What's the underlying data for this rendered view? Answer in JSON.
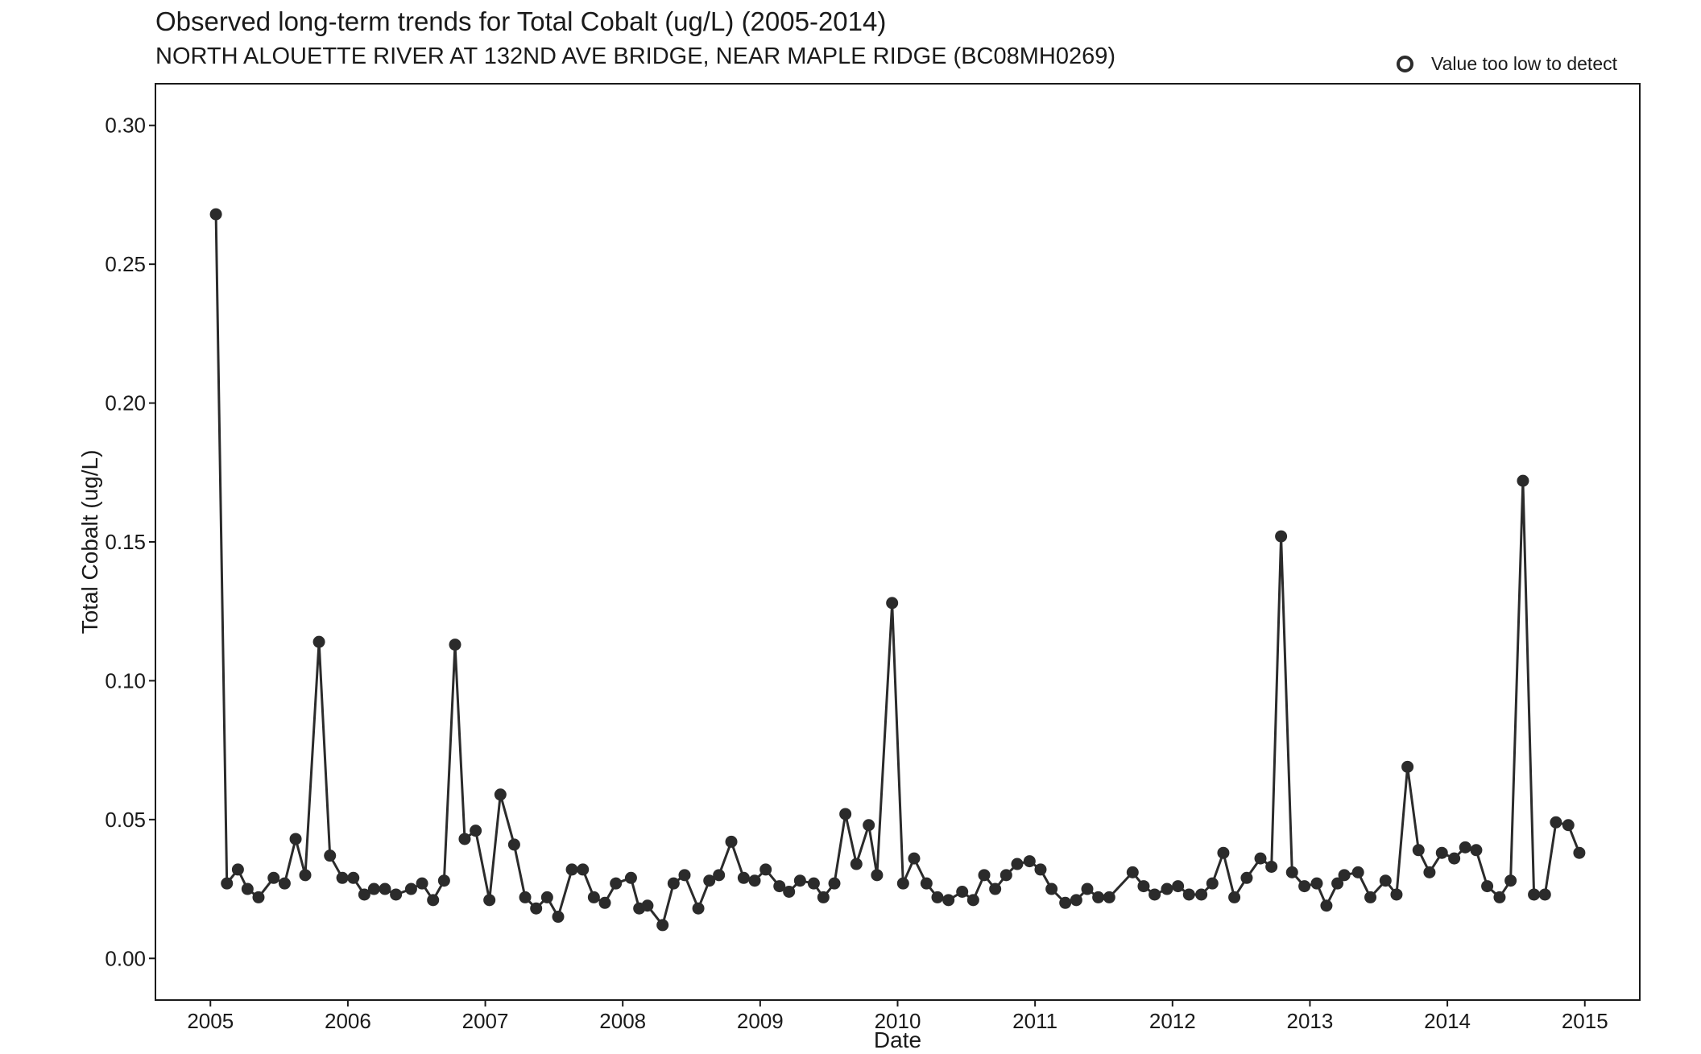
{
  "chart_data": {
    "type": "line",
    "title": "Observed long-term trends for Total Cobalt (ug/L) (2005-2014)",
    "subtitle": "NORTH ALOUETTE RIVER AT 132ND AVE BRIDGE, NEAR MAPLE RIDGE (BC08MH0269)",
    "xlabel": "Date",
    "ylabel": "Total Cobalt (ug/L)",
    "xlim": [
      2004.6,
      2015.4
    ],
    "ylim": [
      -0.015,
      0.315
    ],
    "x_ticks": [
      2005,
      2006,
      2007,
      2008,
      2009,
      2010,
      2011,
      2012,
      2013,
      2014,
      2015
    ],
    "x_tick_labels": [
      "2005",
      "2006",
      "2007",
      "2008",
      "2009",
      "2010",
      "2011",
      "2012",
      "2013",
      "2014",
      "2015"
    ],
    "y_ticks": [
      0.0,
      0.05,
      0.1,
      0.15,
      0.2,
      0.25,
      0.3
    ],
    "y_tick_labels": [
      "0.00",
      "0.05",
      "0.10",
      "0.15",
      "0.20",
      "0.25",
      "0.30"
    ],
    "grid": false,
    "legend": {
      "position": "top-right",
      "label": "Value too low to detect",
      "marker": "open-circle"
    },
    "series": [
      {
        "values_type": "detected",
        "color": "#2b2b2b",
        "points": [
          [
            2005.04,
            0.268
          ],
          [
            2005.12,
            0.027
          ],
          [
            2005.2,
            0.032
          ],
          [
            2005.27,
            0.025
          ],
          [
            2005.35,
            0.022
          ],
          [
            2005.46,
            0.029
          ],
          [
            2005.54,
            0.027
          ],
          [
            2005.62,
            0.043
          ],
          [
            2005.69,
            0.03
          ],
          [
            2005.79,
            0.114
          ],
          [
            2005.87,
            0.037
          ],
          [
            2005.96,
            0.029
          ],
          [
            2006.04,
            0.029
          ],
          [
            2006.12,
            0.023
          ],
          [
            2006.19,
            0.025
          ],
          [
            2006.27,
            0.025
          ],
          [
            2006.35,
            0.023
          ],
          [
            2006.46,
            0.025
          ],
          [
            2006.54,
            0.027
          ],
          [
            2006.62,
            0.021
          ],
          [
            2006.7,
            0.028
          ],
          [
            2006.78,
            0.113
          ],
          [
            2006.85,
            0.043
          ],
          [
            2006.93,
            0.046
          ],
          [
            2007.03,
            0.021
          ],
          [
            2007.11,
            0.059
          ],
          [
            2007.21,
            0.041
          ],
          [
            2007.29,
            0.022
          ],
          [
            2007.37,
            0.018
          ],
          [
            2007.45,
            0.022
          ],
          [
            2007.53,
            0.015
          ],
          [
            2007.63,
            0.032
          ],
          [
            2007.71,
            0.032
          ],
          [
            2007.79,
            0.022
          ],
          [
            2007.87,
            0.02
          ],
          [
            2007.95,
            0.027
          ],
          [
            2008.06,
            0.029
          ],
          [
            2008.12,
            0.018
          ],
          [
            2008.18,
            0.019
          ],
          [
            2008.29,
            0.012
          ],
          [
            2008.37,
            0.027
          ],
          [
            2008.45,
            0.03
          ],
          [
            2008.55,
            0.018
          ],
          [
            2008.63,
            0.028
          ],
          [
            2008.7,
            0.03
          ],
          [
            2008.79,
            0.042
          ],
          [
            2008.88,
            0.029
          ],
          [
            2008.96,
            0.028
          ],
          [
            2009.04,
            0.032
          ],
          [
            2009.14,
            0.026
          ],
          [
            2009.21,
            0.024
          ],
          [
            2009.29,
            0.028
          ],
          [
            2009.39,
            0.027
          ],
          [
            2009.46,
            0.022
          ],
          [
            2009.54,
            0.027
          ],
          [
            2009.62,
            0.052
          ],
          [
            2009.7,
            0.034
          ],
          [
            2009.79,
            0.048
          ],
          [
            2009.85,
            0.03
          ],
          [
            2009.96,
            0.128
          ],
          [
            2010.04,
            0.027
          ],
          [
            2010.12,
            0.036
          ],
          [
            2010.21,
            0.027
          ],
          [
            2010.29,
            0.022
          ],
          [
            2010.37,
            0.021
          ],
          [
            2010.47,
            0.024
          ],
          [
            2010.55,
            0.021
          ],
          [
            2010.63,
            0.03
          ],
          [
            2010.71,
            0.025
          ],
          [
            2010.79,
            0.03
          ],
          [
            2010.87,
            0.034
          ],
          [
            2010.96,
            0.035
          ],
          [
            2011.04,
            0.032
          ],
          [
            2011.12,
            0.025
          ],
          [
            2011.22,
            0.02
          ],
          [
            2011.3,
            0.021
          ],
          [
            2011.38,
            0.025
          ],
          [
            2011.46,
            0.022
          ],
          [
            2011.54,
            0.022
          ],
          [
            2011.71,
            0.031
          ],
          [
            2011.79,
            0.026
          ],
          [
            2011.87,
            0.023
          ],
          [
            2011.96,
            0.025
          ],
          [
            2012.04,
            0.026
          ],
          [
            2012.12,
            0.023
          ],
          [
            2012.21,
            0.023
          ],
          [
            2012.29,
            0.027
          ],
          [
            2012.37,
            0.038
          ],
          [
            2012.45,
            0.022
          ],
          [
            2012.54,
            0.029
          ],
          [
            2012.64,
            0.036
          ],
          [
            2012.72,
            0.033
          ],
          [
            2012.79,
            0.152
          ],
          [
            2012.87,
            0.031
          ],
          [
            2012.96,
            0.026
          ],
          [
            2013.05,
            0.027
          ],
          [
            2013.12,
            0.019
          ],
          [
            2013.2,
            0.027
          ],
          [
            2013.25,
            0.03
          ],
          [
            2013.35,
            0.031
          ],
          [
            2013.44,
            0.022
          ],
          [
            2013.55,
            0.028
          ],
          [
            2013.63,
            0.023
          ],
          [
            2013.71,
            0.069
          ],
          [
            2013.79,
            0.039
          ],
          [
            2013.87,
            0.031
          ],
          [
            2013.96,
            0.038
          ],
          [
            2014.05,
            0.036
          ],
          [
            2014.13,
            0.04
          ],
          [
            2014.21,
            0.039
          ],
          [
            2014.29,
            0.026
          ],
          [
            2014.38,
            0.022
          ],
          [
            2014.46,
            0.028
          ],
          [
            2014.55,
            0.172
          ],
          [
            2014.63,
            0.023
          ],
          [
            2014.71,
            0.023
          ],
          [
            2014.79,
            0.049
          ],
          [
            2014.88,
            0.048
          ],
          [
            2014.96,
            0.038
          ]
        ]
      }
    ]
  }
}
